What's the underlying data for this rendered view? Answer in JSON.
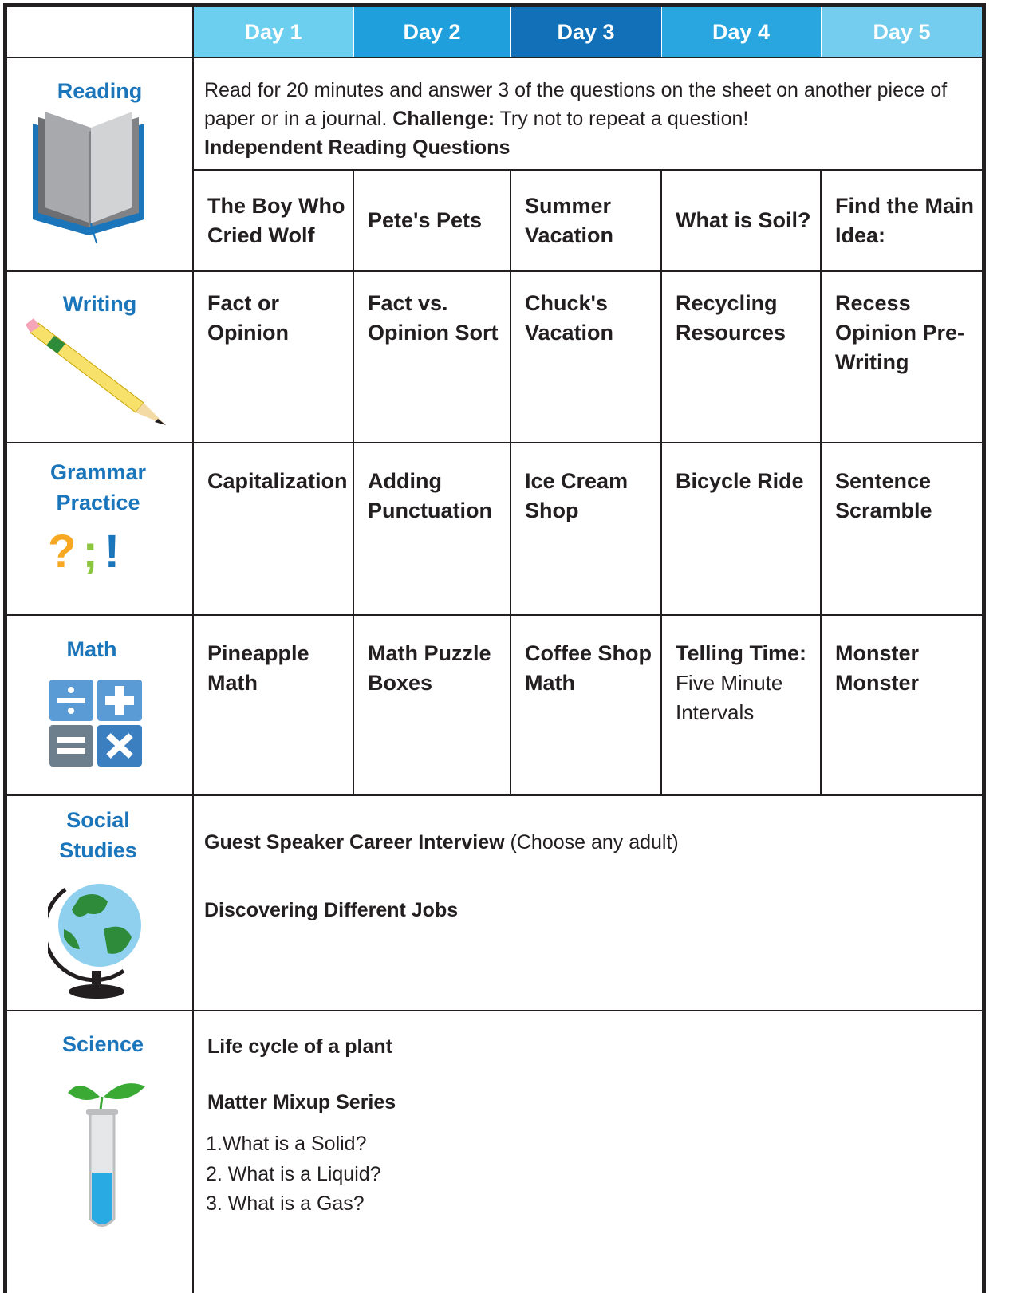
{
  "header": {
    "days": [
      "Day 1",
      "Day 2",
      "Day 3",
      "Day 4",
      "Day 5"
    ]
  },
  "reading": {
    "label": "Reading",
    "intro": "Read for 20 minutes and answer 3 of the questions on the sheet on another piece of paper or in a journal.",
    "challenge_label": "Challenge:",
    "challenge_text": "Try not to repeat a question!",
    "questions": "Independent Reading Questions",
    "days": [
      "The Boy Who Cried Wolf",
      "Pete's Pets",
      "Summer Vacation",
      "What is Soil?",
      "Find the Main Idea:"
    ]
  },
  "writing": {
    "label": "Writing",
    "days": [
      "Fact or Opinion",
      "Fact vs. Opinion Sort",
      "Chuck's Vacation",
      "Recycling Resources",
      "Recess Opinion Pre-Writing"
    ]
  },
  "grammar": {
    "label": "Grammar Practice",
    "symbols": [
      "?",
      ";",
      "!"
    ],
    "days": [
      "Capitalization",
      "Adding Punctuation",
      "Ice Cream Shop",
      "Bicycle Ride",
      "Sentence Scramble"
    ]
  },
  "math": {
    "label": "Math",
    "days": [
      "Pineapple Math",
      "Math Puzzle Boxes",
      "Coffee Shop Math",
      {
        "title": "Telling Time:",
        "detail": "Five Minute Intervals"
      },
      "Monster Monster"
    ]
  },
  "social_studies": {
    "label": "Social Studies",
    "items": [
      {
        "title": "Guest Speaker Career Interview",
        "note": "(Choose any adult)"
      },
      {
        "title": "Discovering Different Jobs"
      }
    ]
  },
  "science": {
    "label": "Science",
    "items": [
      "Life cycle of a plant",
      "Matter Mixup Series"
    ],
    "list": [
      "1.What is a Solid?",
      "2. What is a Liquid?",
      "3. What is a Gas?"
    ]
  }
}
